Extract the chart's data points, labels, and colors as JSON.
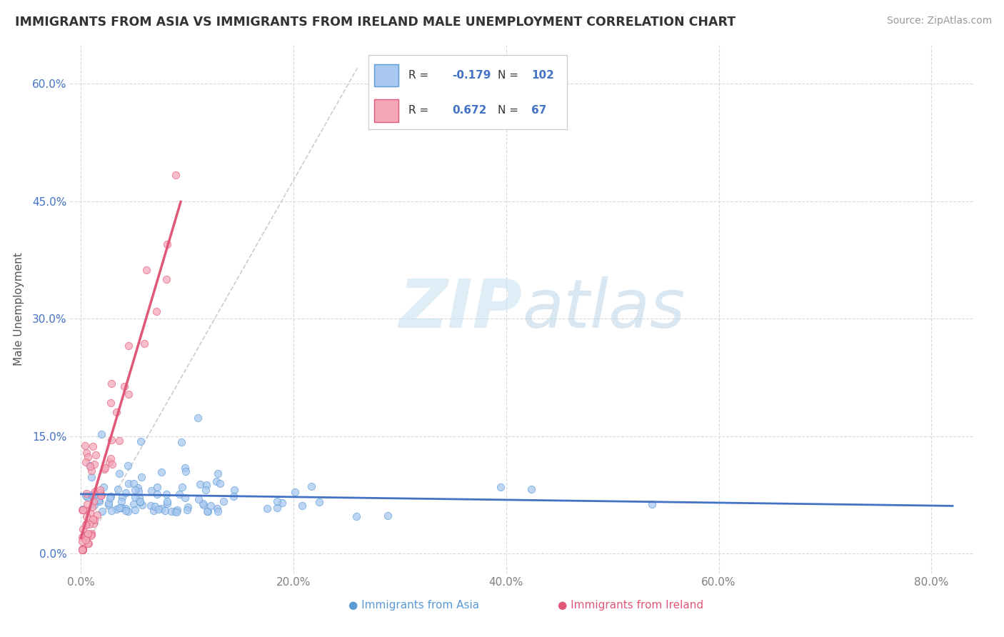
{
  "title": "IMMIGRANTS FROM ASIA VS IMMIGRANTS FROM IRELAND MALE UNEMPLOYMENT CORRELATION CHART",
  "source": "Source: ZipAtlas.com",
  "xlim": [
    -0.01,
    0.84
  ],
  "ylim": [
    -0.025,
    0.65
  ],
  "legend_r_asia": "-0.179",
  "legend_n_asia": "102",
  "legend_r_ireland": "0.672",
  "legend_n_ireland": "67",
  "color_asia_fill": "#a8c8f0",
  "color_asia_edge": "#5b9bd5",
  "color_ireland_fill": "#f4a7b9",
  "color_ireland_edge": "#e05878",
  "color_asia_line": "#4472c4",
  "color_ireland_line": "#e05878",
  "color_dashed": "#c0c0c0",
  "color_grid": "#d8d8d8",
  "color_ytick": "#4472c4",
  "color_xtick": "#808080",
  "color_ylabel": "#555555",
  "color_title": "#333333",
  "color_source": "#999999",
  "watermark_color": "#ddeef8",
  "xtick_vals": [
    0.0,
    0.2,
    0.4,
    0.6,
    0.8
  ],
  "ytick_vals": [
    0.0,
    0.15,
    0.3,
    0.45,
    0.6
  ]
}
